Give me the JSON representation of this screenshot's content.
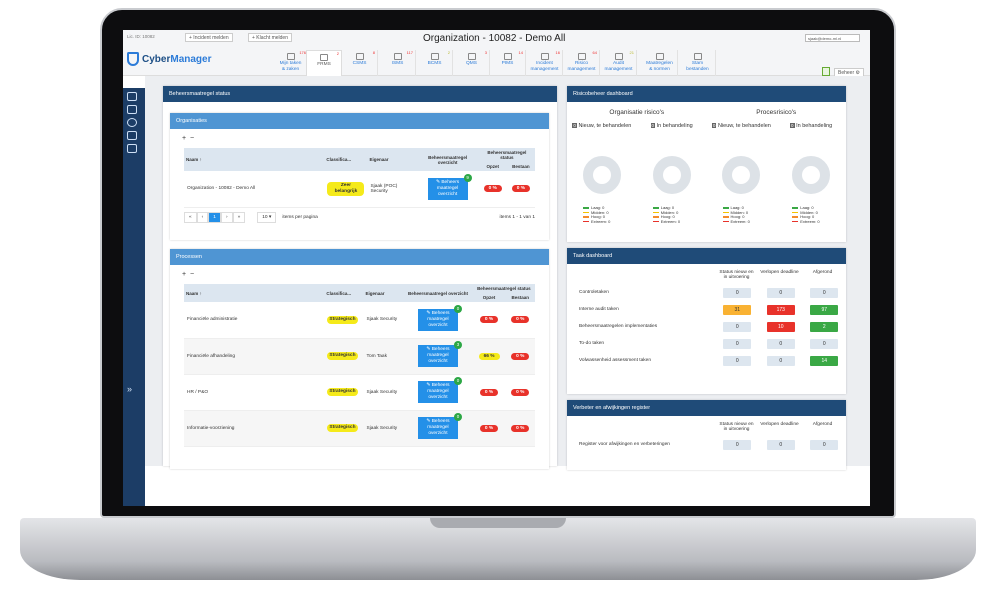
{
  "header": {
    "license": "Lic. ID: 10082",
    "incident_btn": "+ Incident melden",
    "complaint_btn": "+ Klacht melden",
    "title": "Organization - 10082 - Demo All",
    "user": "sjaak@demo-ml.nl",
    "app_name_a": "Cyber",
    "app_name_b": "Manager",
    "beheer": "Beheer ⚙"
  },
  "tabs": [
    {
      "l1": "Mijn taken",
      "l2": "& zaken",
      "count": "176"
    },
    {
      "l1": "FRMS",
      "l2": "",
      "count": "2",
      "active": true
    },
    {
      "l1": "CSMS",
      "l2": "",
      "count": "8"
    },
    {
      "l1": "ISMS",
      "l2": "",
      "count": "117"
    },
    {
      "l1": "BCMS",
      "l2": "",
      "count": "2"
    },
    {
      "l1": "QMS",
      "l2": "",
      "count": "3"
    },
    {
      "l1": "PIMS",
      "l2": "",
      "count": "14"
    },
    {
      "l1": "Incident",
      "l2": "management",
      "count": "16"
    },
    {
      "l1": "Risico",
      "l2": "management",
      "count": "64"
    },
    {
      "l1": "Audit",
      "l2": "management",
      "count": "21"
    },
    {
      "l1": "Maatregelen",
      "l2": "& normen",
      "count": ""
    },
    {
      "l1": "Stam",
      "l2": "bestanden",
      "count": ""
    }
  ],
  "left": {
    "title": "Beheersmaatregel status",
    "cols": {
      "naam": "Naam ↑",
      "class": "Classifica...",
      "eig": "Eigenaar",
      "bo": "Beheersmaatregel overzicht",
      "bs": "Beheersmaatregel status",
      "opzet": "Opzet",
      "bestaan": "Bestaan"
    },
    "btn": "✎ Beheers maatregel overzicht",
    "org": {
      "title": "Organisaties",
      "rows": [
        {
          "naam": "Organization - 10082 - Demo All",
          "class": "Zeer belangrijk",
          "eig": "Sjaak (POC) Security",
          "badge": "9",
          "opzet": "0 %",
          "bestaan": "0 %"
        }
      ],
      "pager": {
        "page": "1",
        "size": "10 ▾",
        "per": "items per pagina",
        "info": "items 1 - 1 van 1"
      }
    },
    "proc": {
      "title": "Processen",
      "rows": [
        {
          "naam": "Financiële administratie",
          "class": "Strategisch",
          "eig": "Sjaak Security",
          "badge": "0",
          "opzet": "0 %",
          "bestaan": "0 %"
        },
        {
          "naam": "Financiële afhandeling",
          "class": "Strategisch",
          "eig": "Tom Taak",
          "badge": "3",
          "opzet": "66 %",
          "bestaan": "0 %"
        },
        {
          "naam": "HR / P&O",
          "class": "Strategisch",
          "eig": "Sjaak Security",
          "badge": "0",
          "opzet": "0 %",
          "bestaan": "0 %"
        },
        {
          "naam": "Informatie-voorziening",
          "class": "Strategisch",
          "eig": "Sjaak Security",
          "badge": "0",
          "opzet": "0 %",
          "bestaan": "0 %"
        }
      ]
    }
  },
  "risk": {
    "title": "Risicobeheer dashboard",
    "org": "Organisatie risico's",
    "proc": "Procesrisico's",
    "charts": [
      {
        "n": "0",
        "label": "Nieuw, te behandelen"
      },
      {
        "n": "0",
        "label": "In behandeling"
      },
      {
        "n": "0",
        "label": "Nieuw, te behandelen"
      },
      {
        "n": "0",
        "label": "In behandeling"
      }
    ],
    "legend": [
      "Laag: 0",
      "Midden: 0",
      "Hoog: 0",
      "Extreem: 0"
    ],
    "legend_colors": [
      "#3aa845",
      "#f2c300",
      "#f58b2b",
      "#e8322a"
    ]
  },
  "tasks": {
    "title": "Taak dashboard",
    "cols": [
      "Status nieuw en in uitvoering",
      "Verlopen deadline",
      "Afgerond"
    ],
    "rows": [
      {
        "label": "Controletaken",
        "v": [
          "0",
          "0",
          "0"
        ]
      },
      {
        "label": "Interne audit taken",
        "v": [
          "31",
          "173",
          "97"
        ]
      },
      {
        "label": "Beheersmaatregelen implementaties",
        "v": [
          "0",
          "10",
          "2"
        ]
      },
      {
        "label": "To-do taken",
        "v": [
          "0",
          "0",
          "0"
        ]
      },
      {
        "label": "Volwassenheid assessment taken",
        "v": [
          "0",
          "0",
          "14"
        ]
      }
    ]
  },
  "register": {
    "title": "Verbeter en afwijkingen register",
    "cols": [
      "Status nieuw en in uitvoering",
      "Verlopen deadline",
      "Afgerond"
    ],
    "rows": [
      {
        "label": "Register voor afwijkingen en verbeteringen",
        "v": [
          "0",
          "0",
          "0"
        ]
      }
    ]
  },
  "sidebar": {
    "expand": "»"
  }
}
